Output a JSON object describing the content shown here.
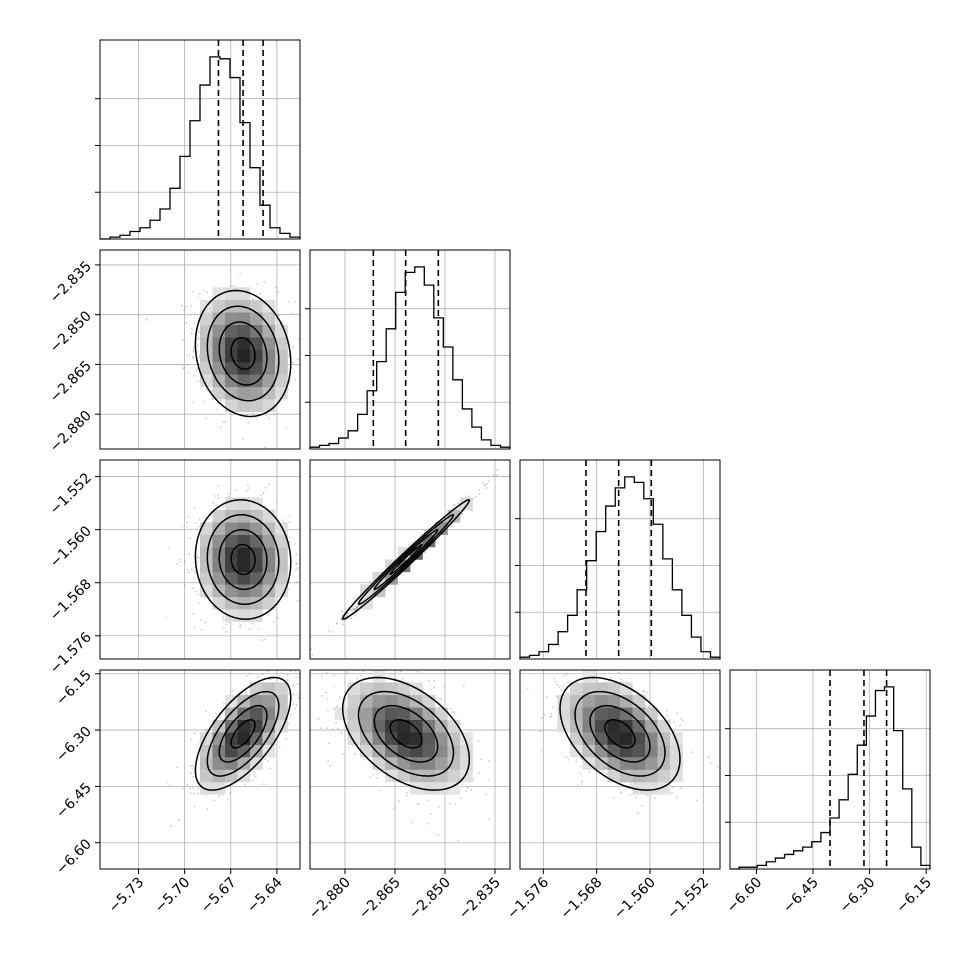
{
  "chart_data": {
    "type": "corner",
    "grid": true,
    "colors": {
      "line": "#000000",
      "grid": "#b0b0b0",
      "scatter": "#8c8c8c"
    },
    "parameters": [
      {
        "range": [
          -5.755,
          -5.625
        ],
        "ticks": [
          -5.73,
          -5.7,
          -5.67,
          -5.64
        ],
        "tick_labels": [
          "−5.73",
          "−5.70",
          "−5.67",
          "−5.64"
        ],
        "mean": -5.662,
        "sd": 0.0155,
        "quantiles": [
          -5.678,
          -5.662,
          -5.649
        ]
      },
      {
        "range": [
          -2.8905,
          -2.8305
        ],
        "ticks": [
          -2.88,
          -2.865,
          -2.85,
          -2.835
        ],
        "tick_labels": [
          "−2.880",
          "−2.865",
          "−2.850",
          "−2.835"
        ],
        "mean": -2.8617,
        "sd": 0.0095,
        "quantiles": [
          -2.8715,
          -2.8618,
          -2.852
        ]
      },
      {
        "range": [
          -1.5795,
          -1.5495
        ],
        "ticks": [
          -1.576,
          -1.568,
          -1.56,
          -1.552
        ],
        "tick_labels": [
          "−1.576",
          "−1.568",
          "−1.560",
          "−1.552"
        ],
        "mean": -1.5645,
        "sd": 0.0045,
        "quantiles": [
          -1.5696,
          -1.5647,
          -1.5598
        ]
      },
      {
        "range": [
          -6.67,
          -6.14
        ],
        "ticks": [
          -6.6,
          -6.45,
          -6.3,
          -6.15
        ],
        "tick_labels": [
          "−6.60",
          "−6.45",
          "−6.30",
          "−6.15"
        ],
        "mean": -6.31,
        "sd": 0.075,
        "quantiles": [
          -6.405,
          -6.315,
          -6.255
        ]
      }
    ],
    "histograms": [
      {
        "counts": [
          0,
          1,
          2,
          4,
          6,
          10,
          16,
          27,
          44,
          63,
          82,
          97,
          96,
          86,
          62,
          38,
          18,
          6,
          3,
          1
        ]
      },
      {
        "counts": [
          1,
          2,
          3,
          6,
          10,
          19,
          32,
          48,
          66,
          86,
          97,
          100,
          90,
          72,
          56,
          38,
          22,
          12,
          5,
          2,
          1
        ]
      },
      {
        "counts": [
          1,
          2,
          4,
          8,
          15,
          24,
          38,
          54,
          70,
          84,
          94,
          100,
          97,
          88,
          74,
          55,
          38,
          24,
          12,
          4,
          1
        ]
      },
      {
        "counts": [
          0,
          1,
          1,
          2,
          4,
          6,
          8,
          10,
          12,
          15,
          20,
          28,
          38,
          52,
          68,
          84,
          98,
          100,
          76,
          44,
          12,
          2
        ]
      }
    ],
    "correlations": [
      {
        "pair": [
          1,
          0
        ],
        "r": -0.15
      },
      {
        "pair": [
          2,
          0
        ],
        "r": -0.05
      },
      {
        "pair": [
          2,
          1
        ],
        "r": 0.99
      },
      {
        "pair": [
          3,
          0
        ],
        "r": 0.65
      },
      {
        "pair": [
          3,
          1
        ],
        "r": -0.45
      },
      {
        "pair": [
          3,
          2
        ],
        "r": -0.45
      }
    ]
  }
}
